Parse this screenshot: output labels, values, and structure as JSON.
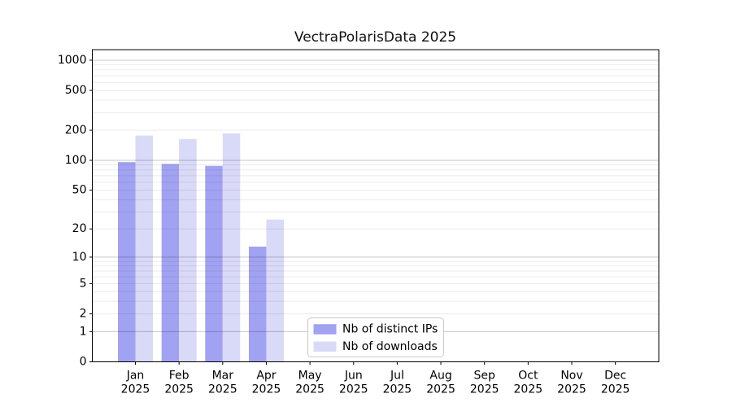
{
  "chart_data": {
    "type": "bar",
    "title": "VectraPolarisData 2025",
    "categories": [
      "Jan",
      "Feb",
      "Mar",
      "Apr",
      "May",
      "Jun",
      "Jul",
      "Aug",
      "Sep",
      "Oct",
      "Nov",
      "Dec"
    ],
    "category_year": "2025",
    "series": [
      {
        "name": "Nb of distinct IPs",
        "color": "#a2a2f2",
        "values": [
          96,
          92,
          88,
          13,
          0,
          0,
          0,
          0,
          0,
          0,
          0,
          0
        ]
      },
      {
        "name": "Nb of downloads",
        "color": "#d9d9f8",
        "values": [
          177,
          163,
          186,
          25,
          0,
          0,
          0,
          0,
          0,
          0,
          0,
          0
        ]
      }
    ],
    "xlabel": "",
    "ylabel": "",
    "yscale": "log1p",
    "ylim": [
      0,
      1270
    ],
    "yticks": [
      0,
      1,
      2,
      5,
      10,
      20,
      50,
      100,
      200,
      500,
      1000
    ],
    "grid": "horizontal major+minor",
    "legend_position": "lower center",
    "colors": {
      "axis": "#000000",
      "tick_label": "#000000",
      "major_grid": "rgba(0,0,0,0.22)",
      "minor_grid": "rgba(0,0,0,0.08)",
      "legend_border": "#c9c9c9",
      "background": "#ffffff"
    }
  }
}
